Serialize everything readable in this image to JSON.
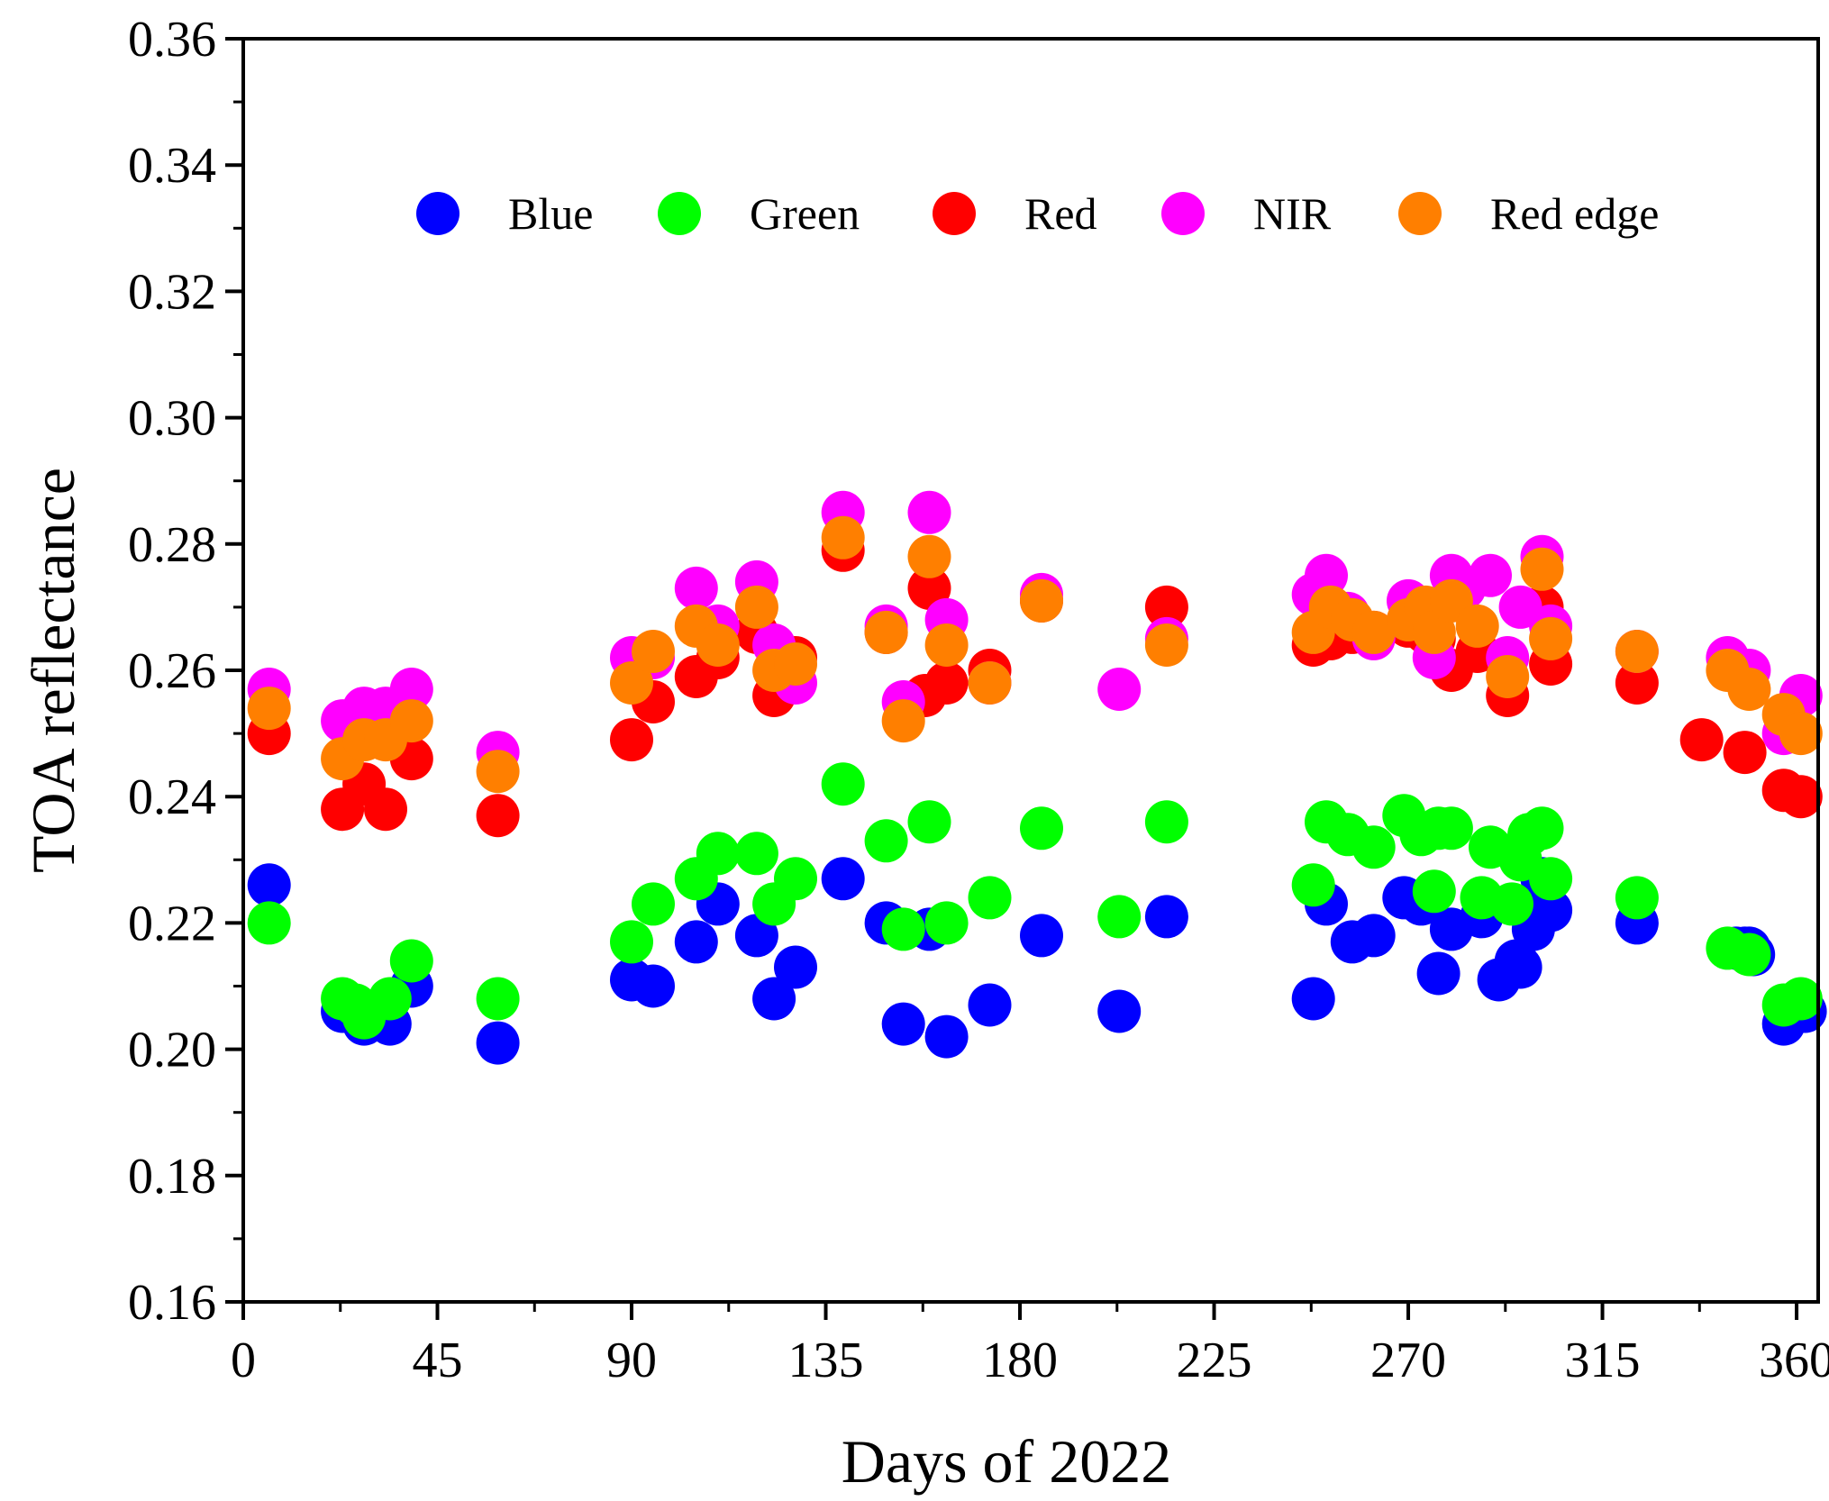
{
  "chart_data": {
    "type": "scatter",
    "title": "",
    "xlabel": "Days of 2022",
    "ylabel": "TOA reflectance",
    "xlim": [
      0,
      365
    ],
    "ylim": [
      0.16,
      0.36
    ],
    "xticks": [
      0,
      45,
      90,
      135,
      180,
      225,
      270,
      315,
      360
    ],
    "xtick_labels": [
      "0",
      "45",
      "90",
      "135",
      "180",
      "225",
      "270",
      "315",
      "360"
    ],
    "yticks": [
      0.16,
      0.18,
      0.2,
      0.22,
      0.24,
      0.26,
      0.28,
      0.3,
      0.32,
      0.34,
      0.36
    ],
    "ytick_labels": [
      "0.16",
      "0.18",
      "0.20",
      "0.22",
      "0.24",
      "0.26",
      "0.28",
      "0.30",
      "0.32",
      "0.34",
      "0.36"
    ],
    "grid": false,
    "legend_position": "top-center",
    "series": [
      {
        "name": "Blue",
        "color": "#0000ff",
        "x": [
          6,
          23,
          28,
          34,
          39,
          59,
          90,
          95,
          105,
          110,
          119,
          123,
          128,
          139,
          149,
          153,
          159,
          163,
          173,
          185,
          203,
          214,
          248,
          251,
          257,
          262,
          269,
          273,
          277,
          280,
          287,
          291,
          295,
          296,
          299,
          301,
          303,
          323,
          346,
          348,
          349,
          350,
          357,
          359,
          361,
          362
        ],
        "y": [
          0.226,
          0.206,
          0.204,
          0.204,
          0.21,
          0.201,
          0.211,
          0.21,
          0.217,
          0.223,
          0.218,
          0.208,
          0.213,
          0.227,
          0.22,
          0.204,
          0.219,
          0.202,
          0.207,
          0.218,
          0.206,
          0.221,
          0.208,
          0.223,
          0.217,
          0.218,
          0.224,
          0.223,
          0.212,
          0.219,
          0.221,
          0.211,
          0.214,
          0.213,
          0.219,
          0.227,
          0.222,
          0.22,
          0.216,
          0.216,
          0.216,
          0.215,
          0.204,
          0.206,
          0.207,
          0.206
        ]
      },
      {
        "name": "Green",
        "color": "#00ff00",
        "x": [
          6,
          23,
          26,
          28,
          34,
          39,
          59,
          90,
          95,
          105,
          110,
          119,
          123,
          128,
          139,
          149,
          153,
          159,
          163,
          173,
          185,
          203,
          214,
          248,
          251,
          256,
          262,
          269,
          273,
          276,
          277,
          280,
          287,
          289,
          294,
          296,
          298,
          301,
          303,
          323,
          344,
          349,
          357,
          361
        ],
        "y": [
          0.22,
          0.208,
          0.207,
          0.205,
          0.208,
          0.214,
          0.208,
          0.217,
          0.223,
          0.227,
          0.231,
          0.231,
          0.223,
          0.227,
          0.242,
          0.233,
          0.219,
          0.236,
          0.22,
          0.224,
          0.235,
          0.221,
          0.236,
          0.226,
          0.236,
          0.234,
          0.232,
          0.237,
          0.234,
          0.225,
          0.235,
          0.235,
          0.224,
          0.232,
          0.223,
          0.23,
          0.234,
          0.235,
          0.227,
          0.224,
          0.216,
          0.215,
          0.207,
          0.208
        ]
      },
      {
        "name": "Red",
        "color": "#ff0000",
        "x": [
          6,
          23,
          28,
          33,
          39,
          59,
          90,
          95,
          105,
          110,
          119,
          123,
          128,
          139,
          149,
          158,
          159,
          163,
          173,
          185,
          214,
          248,
          252,
          257,
          262,
          270,
          274,
          276,
          280,
          286,
          293,
          301,
          303,
          323,
          338,
          348,
          357,
          361
        ],
        "y": [
          0.25,
          0.238,
          0.242,
          0.238,
          0.246,
          0.237,
          0.249,
          0.255,
          0.259,
          0.262,
          0.266,
          0.256,
          0.262,
          0.279,
          0.266,
          0.256,
          0.273,
          0.258,
          0.26,
          0.271,
          0.27,
          0.264,
          0.265,
          0.266,
          0.266,
          0.267,
          0.266,
          0.265,
          0.26,
          0.263,
          0.256,
          0.27,
          0.261,
          0.258,
          0.249,
          0.247,
          0.241,
          0.24
        ]
      },
      {
        "name": "NIR",
        "color": "#ff00ff",
        "x": [
          6,
          23,
          28,
          33,
          39,
          59,
          90,
          95,
          105,
          110,
          119,
          123,
          128,
          139,
          149,
          153,
          159,
          163,
          173,
          185,
          203,
          214,
          248,
          251,
          256,
          262,
          270,
          274,
          276,
          280,
          283,
          289,
          293,
          296,
          301,
          303,
          323,
          344,
          349,
          357,
          361
        ],
        "y": [
          0.257,
          0.252,
          0.254,
          0.254,
          0.257,
          0.247,
          0.262,
          0.262,
          0.273,
          0.267,
          0.274,
          0.264,
          0.258,
          0.285,
          0.267,
          0.255,
          0.285,
          0.268,
          0.258,
          0.272,
          0.257,
          0.265,
          0.272,
          0.275,
          0.269,
          0.265,
          0.271,
          0.268,
          0.262,
          0.275,
          0.273,
          0.275,
          0.262,
          0.27,
          0.278,
          0.267,
          0.263,
          0.262,
          0.26,
          0.25,
          0.256
        ]
      },
      {
        "name": "Red edge",
        "color": "#ff7f00",
        "x": [
          6,
          23,
          28,
          33,
          39,
          59,
          90,
          95,
          105,
          110,
          119,
          123,
          128,
          139,
          149,
          153,
          159,
          163,
          173,
          185,
          214,
          248,
          252,
          257,
          262,
          270,
          274,
          276,
          280,
          286,
          293,
          301,
          303,
          323,
          344,
          349,
          357,
          361
        ],
        "y": [
          0.254,
          0.246,
          0.249,
          0.249,
          0.252,
          0.244,
          0.258,
          0.263,
          0.267,
          0.264,
          0.27,
          0.26,
          0.261,
          0.281,
          0.266,
          0.252,
          0.278,
          0.264,
          0.258,
          0.271,
          0.264,
          0.266,
          0.27,
          0.268,
          0.266,
          0.268,
          0.27,
          0.266,
          0.271,
          0.267,
          0.259,
          0.276,
          0.265,
          0.263,
          0.26,
          0.257,
          0.253,
          0.25
        ]
      }
    ]
  }
}
